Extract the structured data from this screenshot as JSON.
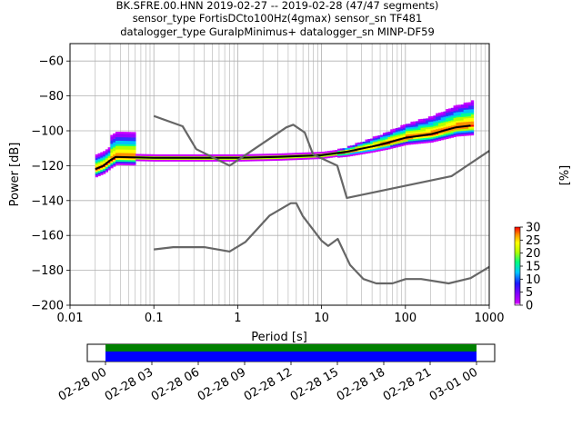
{
  "title_lines": [
    "BK.SFRE.00.HNN   2019-02-27 -- 2019-02-28  (47/47 segments)",
    "sensor_type FortisDCto100Hz(4gmax) sensor_sn TF481",
    "datalogger_type GuralpMinimus+ datalogger_sn MINP-DF59"
  ],
  "chart_data": {
    "type": "heatmap",
    "xlabel": "Period [s]",
    "ylabel": "Power [dB]",
    "xscale": "log",
    "xlim": [
      0.01,
      1000
    ],
    "ylim": [
      -200,
      -50
    ],
    "x_ticks": [
      0.01,
      0.1,
      1,
      10,
      100,
      1000
    ],
    "x_tick_labels": [
      "0.01",
      "0.1",
      "1",
      "10",
      "100",
      "1000"
    ],
    "y_ticks": [
      -200,
      -180,
      -160,
      -140,
      -120,
      -100,
      -80,
      -60
    ],
    "y_tick_labels": [
      "−200",
      "−180",
      "−160",
      "−140",
      "−120",
      "−100",
      "−80",
      "−60"
    ],
    "grid": true,
    "colorbar": {
      "label": "[%]",
      "range": [
        0,
        30
      ],
      "ticks": [
        0,
        5,
        10,
        15,
        20,
        25,
        30
      ],
      "tick_labels": [
        "0",
        "5",
        "10",
        "15",
        "20",
        "25",
        "30"
      ]
    },
    "noise_models": [
      {
        "points": [
          [
            0.1,
            -91.5
          ],
          [
            0.22,
            -97.4
          ],
          [
            0.32,
            -110.5
          ],
          [
            0.8,
            -120
          ],
          [
            3.8,
            -98
          ],
          [
            4.6,
            -96.5
          ],
          [
            6.3,
            -101
          ],
          [
            7.9,
            -113.5
          ],
          [
            15.4,
            -120
          ],
          [
            20,
            -138.5
          ],
          [
            354.8,
            -126
          ],
          [
            1000,
            -111.5
          ]
        ]
      },
      {
        "points": [
          [
            0.1,
            -168
          ],
          [
            0.17,
            -166.7
          ],
          [
            0.4,
            -166.7
          ],
          [
            0.8,
            -169.2
          ],
          [
            1.24,
            -163.7
          ],
          [
            2.4,
            -148.6
          ],
          [
            4.3,
            -141.5
          ],
          [
            5,
            -141.5
          ],
          [
            6,
            -149
          ],
          [
            10,
            -163
          ],
          [
            12,
            -166
          ],
          [
            15.6,
            -162
          ],
          [
            21.9,
            -177
          ],
          [
            31.6,
            -185
          ],
          [
            45,
            -187.5
          ],
          [
            70,
            -187.5
          ],
          [
            101,
            -185
          ],
          [
            154,
            -185
          ],
          [
            328,
            -187.5
          ],
          [
            600,
            -184.5
          ],
          [
            1000,
            -178
          ]
        ]
      }
    ],
    "psd_mode": {
      "points": [
        [
          0.02,
          -122
        ],
        [
          0.025,
          -120
        ],
        [
          0.03,
          -117
        ],
        [
          0.035,
          -115
        ],
        [
          0.1,
          -115.5
        ],
        [
          1,
          -115.5
        ],
        [
          3,
          -115
        ],
        [
          10,
          -114
        ],
        [
          20,
          -112
        ],
        [
          40,
          -109
        ],
        [
          60,
          -107
        ],
        [
          100,
          -104
        ],
        [
          200,
          -102
        ],
        [
          400,
          -98
        ],
        [
          600,
          -97
        ]
      ]
    },
    "time_axis": {
      "tick_labels": [
        "02-28 00",
        "02-28 03",
        "02-28 06",
        "02-28 09",
        "02-28 12",
        "02-28 15",
        "02-28 18",
        "02-28 21",
        "03-01 00"
      ],
      "coverage_colors": [
        "#008000",
        "#0000ff"
      ]
    }
  }
}
